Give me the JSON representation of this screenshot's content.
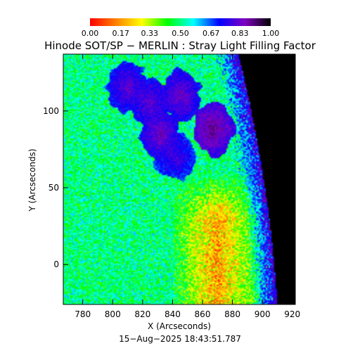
{
  "chart_data": {
    "type": "heatmap",
    "title": "Hinode SOT/SP − MERLIN : Stray Light Filling Factor",
    "xlabel": "X (Arcseconds)",
    "ylabel": "Y (Arcseconds)",
    "footer_timestamp": "15−Aug−2025 18:43:51.787",
    "xlim": [
      767,
      922
    ],
    "ylim": [
      -26,
      137
    ],
    "x_ticks": [
      780,
      800,
      820,
      840,
      860,
      880,
      900,
      920
    ],
    "x_tick_labels": [
      "780",
      "800",
      "820",
      "840",
      "860",
      "880",
      "900",
      "920"
    ],
    "y_ticks": [
      0,
      50,
      100
    ],
    "y_tick_labels": [
      "0",
      "50",
      "100"
    ],
    "colorbar": {
      "range": [
        0.0,
        1.0
      ],
      "ticks": [
        0.0,
        0.17,
        0.33,
        0.5,
        0.67,
        0.83,
        1.0
      ],
      "tick_labels": [
        "0.00",
        "0.17",
        "0.33",
        "0.50",
        "0.67",
        "0.83",
        "1.00"
      ],
      "colors": [
        "#ff0000",
        "#ff8000",
        "#ffff00",
        "#00ff00",
        "#00ffff",
        "#0000ff",
        "#8000c0",
        "#000000"
      ]
    },
    "field_summary": {
      "background_value": 0.5,
      "solar_limb_x_at_top": 880,
      "solar_limb_x_at_bottom": 906,
      "off_limb_value": 1.0,
      "high_regions": [
        {
          "x": 810,
          "y": 115,
          "value": 0.83
        },
        {
          "x": 825,
          "y": 105,
          "value": 0.83
        },
        {
          "x": 845,
          "y": 110,
          "value": 0.85
        },
        {
          "x": 867,
          "y": 88,
          "value": 0.9
        },
        {
          "x": 832,
          "y": 85,
          "value": 0.85
        },
        {
          "x": 842,
          "y": 70,
          "value": 0.8
        }
      ],
      "low_region": {
        "x_range": [
          840,
          900
        ],
        "y_range": [
          -26,
          60
        ],
        "value": 0.2
      }
    }
  }
}
